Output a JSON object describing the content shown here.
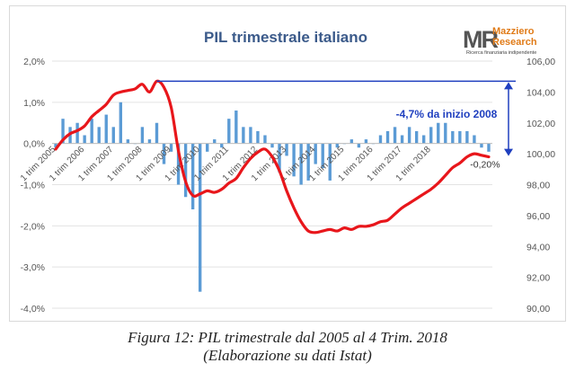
{
  "chart_data": {
    "type": "bar+line",
    "title": "PIL trimestrale italiano",
    "left_axis": {
      "ticks": [
        "2,0%",
        "1,0%",
        "0,0%",
        "-1,0%",
        "-2,0%",
        "-3,0%",
        "-4,0%"
      ],
      "ylim": [
        -4.0,
        2.0
      ]
    },
    "right_axis": {
      "ticks": [
        "106,00",
        "104,00",
        "102,00",
        "100,00",
        "98,00",
        "96,00",
        "94,00",
        "92,00",
        "90,00"
      ],
      "ylim": [
        90,
        106
      ]
    },
    "x_tick_labels": [
      "1 trim 2005",
      "1 trim 2006",
      "1 trim 2007",
      "1 trim 2008",
      "1 trim 2009",
      "1 trim 2010",
      "1 trim 2011",
      "1 trim 2012",
      "1 trim 2013",
      "1 trim 2014",
      "1 trim 2015",
      "1 trim 2016",
      "1 trim 2017",
      "1 trim 2018"
    ],
    "bar_color": "#5b9bd5",
    "line_color": "#e8161b",
    "series": [
      {
        "kind": "bar",
        "axis": "left",
        "values": [
          -0.1,
          0.6,
          0.4,
          0.5,
          0.2,
          0.6,
          0.4,
          0.7,
          0.4,
          1.0,
          0.1,
          0.0,
          0.4,
          0.1,
          0.5,
          -0.5,
          -0.2,
          -1.0,
          -1.3,
          -1.6,
          -3.6,
          -0.2,
          0.1,
          -0.1,
          0.6,
          0.8,
          0.4,
          0.4,
          0.3,
          0.2,
          -0.1,
          -0.7,
          -0.3,
          -0.8,
          -1.0,
          -0.9,
          -0.5,
          -0.6,
          -0.9,
          -0.1,
          0.0,
          0.1,
          -0.1,
          0.1,
          0.0,
          0.2,
          0.3,
          0.4,
          0.2,
          0.4,
          0.3,
          0.2,
          0.4,
          0.5,
          0.5,
          0.3,
          0.3,
          0.3,
          0.2,
          -0.1,
          -0.2
        ]
      },
      {
        "kind": "line",
        "axis": "right",
        "values": [
          100.3,
          100.9,
          101.3,
          101.5,
          101.8,
          102.4,
          102.8,
          103.2,
          103.8,
          104.0,
          104.1,
          104.2,
          104.5,
          104.0,
          104.7,
          104.3,
          103.0,
          100.2,
          98.2,
          97.3,
          97.4,
          97.6,
          97.5,
          97.7,
          98.1,
          98.4,
          99.1,
          99.7,
          100.1,
          100.3,
          99.8,
          98.9,
          97.6,
          96.5,
          95.6,
          95.0,
          94.9,
          95.0,
          95.1,
          95.0,
          95.2,
          95.1,
          95.3,
          95.3,
          95.4,
          95.6,
          95.7,
          96.1,
          96.5,
          96.8,
          97.1,
          97.4,
          97.7,
          98.1,
          98.6,
          99.1,
          99.4,
          99.8,
          100.0,
          99.9,
          99.8
        ]
      }
    ],
    "annotations": {
      "cumulative_label": "-4,7% da inizio 2008",
      "last_label": "-0,20%",
      "peak_value": 104.7,
      "end_value": 99.8
    },
    "grid": true,
    "legend": "none"
  },
  "logo": {
    "mark": "MR",
    "name_line1": "Mazziero",
    "name_line2": "Research",
    "tagline": "Ricerca finanziaria indipendente"
  },
  "caption": {
    "line1": "Figura 12: PIL trimestrale dal 2005 al 4 Trim. 2018",
    "line2": "(Elaborazione su dati Istat)"
  }
}
